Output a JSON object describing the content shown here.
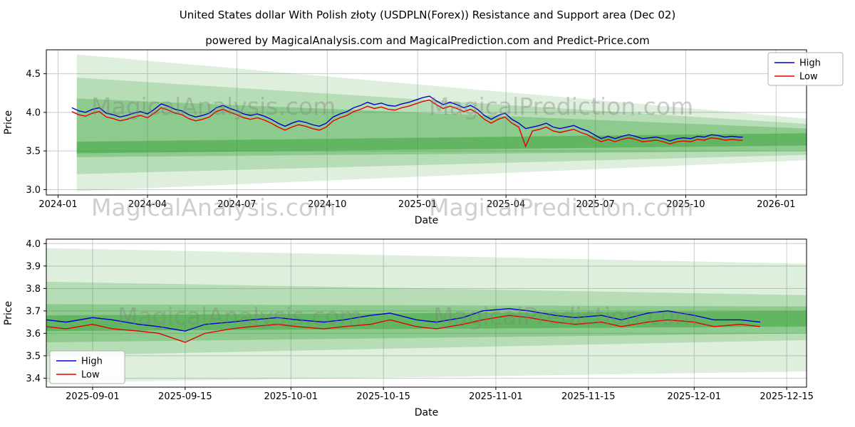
{
  "figure": {
    "title": "United States dollar With Polish złoty (USDPLN(Forex)) Resistance and Support area (Dec 02)",
    "subtitle": "powered by MagicalAnalysis.com and MagicalPrediction.com and Predict-Price.com"
  },
  "watermarks": {
    "left": "MagicalAnalysis.com",
    "right": "MagicalPrediction.com"
  },
  "colors": {
    "high": "#0000cc",
    "low": "#e60000",
    "band": "#2f9e2f",
    "grid": "#c9c9c9",
    "legend_border": "#b0b0b0"
  },
  "chart_data": [
    {
      "type": "line",
      "title": "",
      "xlabel": "Date",
      "ylabel": "Price",
      "xlim": [
        "2023-12-20",
        "2026-02-01"
      ],
      "ylim": [
        2.93,
        4.81
      ],
      "grid": true,
      "legend": {
        "position": "top-right",
        "entries": [
          "High",
          "Low"
        ]
      },
      "x_ticks": [
        {
          "date": "2024-01-01",
          "label": "2024-01"
        },
        {
          "date": "2024-04-01",
          "label": "2024-04"
        },
        {
          "date": "2024-07-01",
          "label": "2024-07"
        },
        {
          "date": "2024-10-01",
          "label": "2024-10"
        },
        {
          "date": "2025-01-01",
          "label": "2025-01"
        },
        {
          "date": "2025-04-01",
          "label": "2025-04"
        },
        {
          "date": "2025-07-01",
          "label": "2025-07"
        },
        {
          "date": "2025-10-01",
          "label": "2025-10"
        },
        {
          "date": "2026-01-01",
          "label": "2026-01"
        }
      ],
      "y_ticks": [
        3.0,
        3.5,
        4.0,
        4.5
      ],
      "dates": [
        "2024-01-15",
        "2024-01-22",
        "2024-01-29",
        "2024-02-05",
        "2024-02-12",
        "2024-02-19",
        "2024-02-26",
        "2024-03-04",
        "2024-03-11",
        "2024-03-18",
        "2024-03-25",
        "2024-04-01",
        "2024-04-08",
        "2024-04-15",
        "2024-04-22",
        "2024-04-29",
        "2024-05-06",
        "2024-05-13",
        "2024-05-20",
        "2024-05-27",
        "2024-06-03",
        "2024-06-10",
        "2024-06-17",
        "2024-06-24",
        "2024-07-01",
        "2024-07-08",
        "2024-07-15",
        "2024-07-22",
        "2024-07-29",
        "2024-08-05",
        "2024-08-12",
        "2024-08-19",
        "2024-08-26",
        "2024-09-02",
        "2024-09-09",
        "2024-09-16",
        "2024-09-23",
        "2024-09-30",
        "2024-10-07",
        "2024-10-14",
        "2024-10-21",
        "2024-10-28",
        "2024-11-04",
        "2024-11-11",
        "2024-11-18",
        "2024-11-25",
        "2024-12-02",
        "2024-12-09",
        "2024-12-16",
        "2024-12-23",
        "2024-12-30",
        "2025-01-06",
        "2025-01-13",
        "2025-01-20",
        "2025-01-27",
        "2025-02-03",
        "2025-02-10",
        "2025-02-17",
        "2025-02-24",
        "2025-03-03",
        "2025-03-10",
        "2025-03-17",
        "2025-03-24",
        "2025-03-31",
        "2025-04-07",
        "2025-04-14",
        "2025-04-21",
        "2025-04-28",
        "2025-05-05",
        "2025-05-12",
        "2025-05-19",
        "2025-05-26",
        "2025-06-02",
        "2025-06-09",
        "2025-06-16",
        "2025-06-23",
        "2025-06-30",
        "2025-07-07",
        "2025-07-14",
        "2025-07-21",
        "2025-07-28",
        "2025-08-04",
        "2025-08-11",
        "2025-08-18",
        "2025-08-25",
        "2025-09-01",
        "2025-09-08",
        "2025-09-15",
        "2025-09-22",
        "2025-09-29",
        "2025-10-06",
        "2025-10-13",
        "2025-10-20",
        "2025-10-27",
        "2025-11-03",
        "2025-11-10",
        "2025-11-17",
        "2025-11-24",
        "2025-11-28"
      ],
      "series": [
        {
          "name": "High",
          "color": "#0000cc",
          "values": [
            4.06,
            4.02,
            4.0,
            4.04,
            4.06,
            3.99,
            3.97,
            3.94,
            3.96,
            3.99,
            4.01,
            3.98,
            4.04,
            4.11,
            4.08,
            4.04,
            4.02,
            3.97,
            3.94,
            3.96,
            3.99,
            4.06,
            4.09,
            4.05,
            4.02,
            3.98,
            3.96,
            3.98,
            3.95,
            3.91,
            3.86,
            3.82,
            3.86,
            3.89,
            3.87,
            3.84,
            3.82,
            3.86,
            3.94,
            3.98,
            4.01,
            4.06,
            4.09,
            4.13,
            4.1,
            4.12,
            4.09,
            4.08,
            4.11,
            4.13,
            4.16,
            4.19,
            4.21,
            4.15,
            4.1,
            4.13,
            4.1,
            4.06,
            4.09,
            4.04,
            3.96,
            3.91,
            3.96,
            3.99,
            3.91,
            3.86,
            3.79,
            3.81,
            3.83,
            3.86,
            3.81,
            3.79,
            3.81,
            3.83,
            3.79,
            3.76,
            3.71,
            3.66,
            3.69,
            3.66,
            3.69,
            3.71,
            3.69,
            3.66,
            3.67,
            3.68,
            3.66,
            3.63,
            3.66,
            3.67,
            3.66,
            3.69,
            3.68,
            3.71,
            3.7,
            3.68,
            3.69,
            3.68,
            3.68
          ]
        },
        {
          "name": "Low",
          "color": "#e60000",
          "values": [
            4.01,
            3.97,
            3.95,
            3.99,
            4.01,
            3.94,
            3.92,
            3.89,
            3.91,
            3.94,
            3.96,
            3.93,
            3.99,
            4.06,
            4.03,
            3.99,
            3.97,
            3.92,
            3.89,
            3.91,
            3.94,
            4.01,
            4.04,
            4.0,
            3.97,
            3.93,
            3.91,
            3.93,
            3.9,
            3.86,
            3.81,
            3.77,
            3.81,
            3.84,
            3.82,
            3.79,
            3.77,
            3.81,
            3.89,
            3.93,
            3.96,
            4.01,
            4.04,
            4.08,
            4.05,
            4.07,
            4.04,
            4.03,
            4.06,
            4.08,
            4.11,
            4.14,
            4.16,
            4.1,
            4.05,
            4.08,
            4.05,
            4.01,
            4.04,
            3.99,
            3.91,
            3.86,
            3.91,
            3.94,
            3.86,
            3.81,
            3.56,
            3.76,
            3.78,
            3.81,
            3.76,
            3.74,
            3.76,
            3.78,
            3.74,
            3.71,
            3.66,
            3.62,
            3.65,
            3.62,
            3.65,
            3.67,
            3.65,
            3.62,
            3.63,
            3.64,
            3.62,
            3.59,
            3.62,
            3.63,
            3.62,
            3.65,
            3.64,
            3.67,
            3.66,
            3.64,
            3.65,
            3.64,
            3.64
          ]
        }
      ],
      "bands": [
        {
          "x0": "2024-01-20",
          "x1": "2026-02-01",
          "top0": 4.75,
          "bot0": 2.98,
          "top1": 3.92,
          "bot1": 3.38,
          "opacity": 0.16
        },
        {
          "x0": "2024-01-20",
          "x1": "2026-02-01",
          "top0": 4.45,
          "bot0": 3.2,
          "top1": 3.85,
          "bot1": 3.45,
          "opacity": 0.22
        },
        {
          "x0": "2024-01-20",
          "x1": "2026-02-01",
          "top0": 4.18,
          "bot0": 3.42,
          "top1": 3.79,
          "bot1": 3.5,
          "opacity": 0.3
        },
        {
          "x0": "2024-01-20",
          "x1": "2026-02-01",
          "top0": 3.62,
          "bot0": 3.47,
          "top1": 3.73,
          "bot1": 3.57,
          "opacity": 0.45
        }
      ]
    },
    {
      "type": "line",
      "title": "",
      "xlabel": "Date",
      "ylabel": "Price",
      "xlim": [
        "2025-08-25",
        "2025-12-18"
      ],
      "ylim": [
        3.36,
        4.02
      ],
      "grid": true,
      "legend": {
        "position": "bottom-left",
        "entries": [
          "High",
          "Low"
        ]
      },
      "x_ticks": [
        {
          "date": "2025-09-01",
          "label": "2025-09-01"
        },
        {
          "date": "2025-09-15",
          "label": "2025-09-15"
        },
        {
          "date": "2025-10-01",
          "label": "2025-10-01"
        },
        {
          "date": "2025-10-15",
          "label": "2025-10-15"
        },
        {
          "date": "2025-11-01",
          "label": "2025-11-01"
        },
        {
          "date": "2025-11-15",
          "label": "2025-11-15"
        },
        {
          "date": "2025-12-01",
          "label": "2025-12-01"
        },
        {
          "date": "2025-12-15",
          "label": "2025-12-15"
        }
      ],
      "y_ticks": [
        3.4,
        3.5,
        3.6,
        3.7,
        3.8,
        3.9,
        4.0
      ],
      "dates": [
        "2025-08-25",
        "2025-08-28",
        "2025-09-01",
        "2025-09-04",
        "2025-09-08",
        "2025-09-11",
        "2025-09-15",
        "2025-09-18",
        "2025-09-22",
        "2025-09-25",
        "2025-09-29",
        "2025-10-02",
        "2025-10-06",
        "2025-10-09",
        "2025-10-13",
        "2025-10-16",
        "2025-10-20",
        "2025-10-23",
        "2025-10-27",
        "2025-10-30",
        "2025-11-03",
        "2025-11-06",
        "2025-11-10",
        "2025-11-13",
        "2025-11-17",
        "2025-11-20",
        "2025-11-24",
        "2025-11-27",
        "2025-12-01",
        "2025-12-04",
        "2025-12-08",
        "2025-12-11"
      ],
      "series": [
        {
          "name": "High",
          "color": "#0000cc",
          "values": [
            3.66,
            3.65,
            3.67,
            3.66,
            3.64,
            3.63,
            3.61,
            3.64,
            3.65,
            3.66,
            3.67,
            3.66,
            3.65,
            3.66,
            3.68,
            3.69,
            3.66,
            3.65,
            3.67,
            3.7,
            3.71,
            3.7,
            3.68,
            3.67,
            3.68,
            3.66,
            3.69,
            3.7,
            3.68,
            3.66,
            3.66,
            3.65
          ]
        },
        {
          "name": "Low",
          "color": "#e60000",
          "values": [
            3.63,
            3.62,
            3.64,
            3.62,
            3.61,
            3.6,
            3.56,
            3.6,
            3.62,
            3.63,
            3.64,
            3.63,
            3.62,
            3.63,
            3.64,
            3.66,
            3.63,
            3.62,
            3.64,
            3.66,
            3.68,
            3.67,
            3.65,
            3.64,
            3.65,
            3.63,
            3.65,
            3.66,
            3.65,
            3.63,
            3.64,
            3.63
          ]
        }
      ],
      "bands": [
        {
          "x0": "2025-08-25",
          "x1": "2025-12-18",
          "top0": 3.98,
          "bot0": 3.38,
          "top1": 3.91,
          "bot1": 3.43,
          "opacity": 0.16
        },
        {
          "x0": "2025-08-25",
          "x1": "2025-12-18",
          "top0": 3.83,
          "bot0": 3.5,
          "top1": 3.77,
          "bot1": 3.57,
          "opacity": 0.22
        },
        {
          "x0": "2025-08-25",
          "x1": "2025-12-18",
          "top0": 3.73,
          "bot0": 3.56,
          "top1": 3.72,
          "bot1": 3.6,
          "opacity": 0.3
        },
        {
          "x0": "2025-08-25",
          "x1": "2025-12-18",
          "top0": 3.68,
          "bot0": 3.61,
          "top1": 3.7,
          "bot1": 3.63,
          "opacity": 0.45
        }
      ]
    }
  ]
}
